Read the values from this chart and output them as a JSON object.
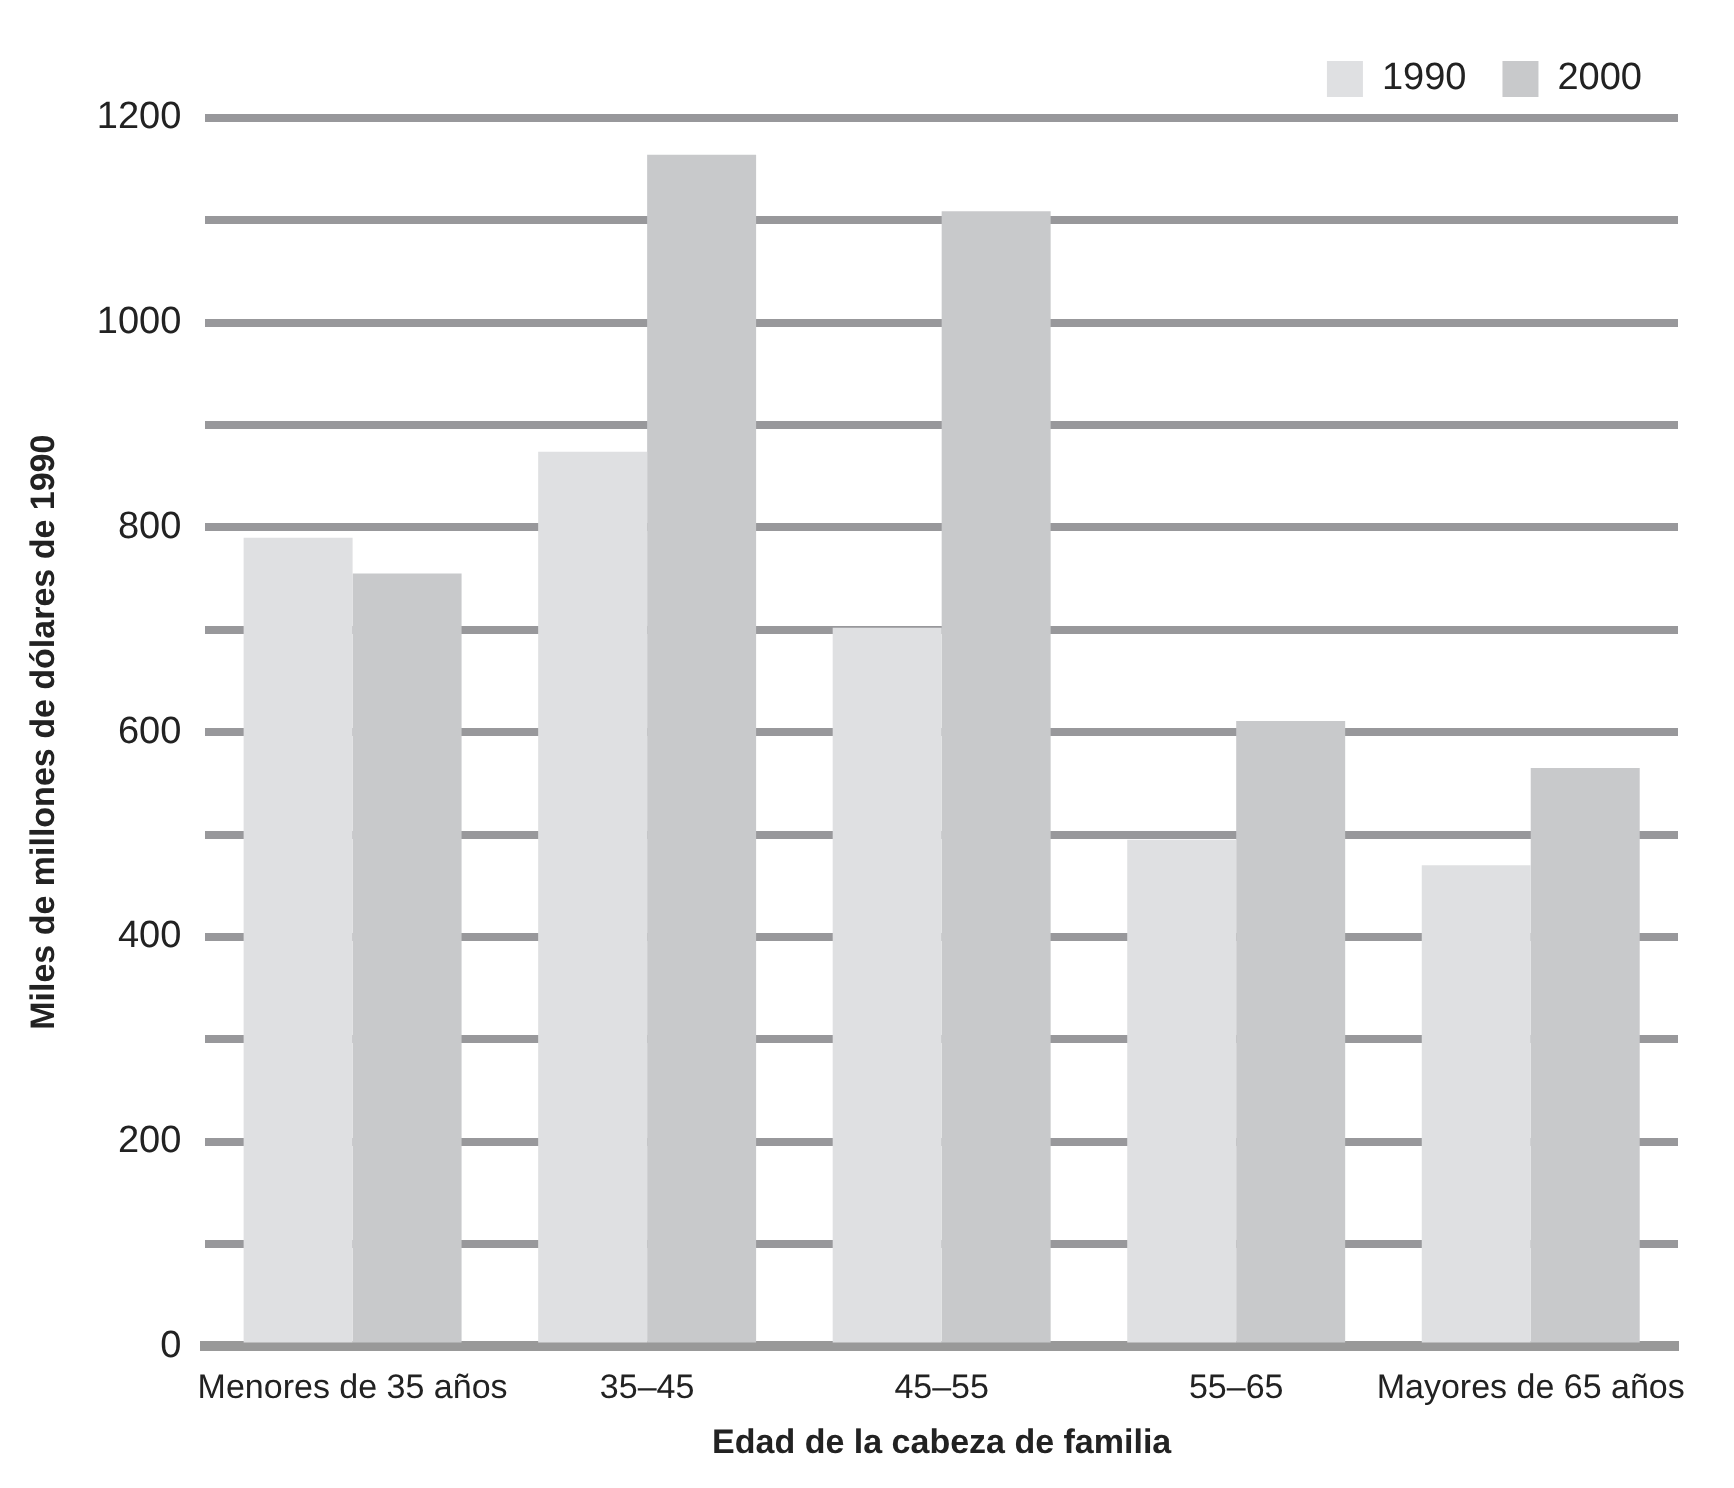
{
  "chart_data": {
    "type": "bar",
    "xlabel": "Edad de la cabeza de familia",
    "ylabel": "Miles de millones de dólares de 1990",
    "categories": [
      "Menores de 35 años",
      "35–45",
      "45–55",
      "55–65",
      "Mayores de 65 años"
    ],
    "series": [
      {
        "name": "1990",
        "color": "#dfe0e2",
        "values": [
          790,
          874,
          702,
          495,
          470
        ]
      },
      {
        "name": "2000",
        "color": "#c8c9cb",
        "values": [
          755,
          1164,
          1109,
          611,
          565
        ]
      }
    ],
    "ylim": [
      0,
      1200
    ],
    "yticks": [
      0,
      {
        "value": 100,
        "label": null
      },
      200,
      {
        "value": 300,
        "label": null
      },
      400,
      {
        "value": 500,
        "label": null
      },
      600,
      {
        "value": 700,
        "label": null
      },
      800,
      {
        "value": 900,
        "label": null
      },
      1000,
      {
        "value": 1100,
        "label": null
      },
      1200
    ],
    "grid": "y",
    "legend": "top right"
  }
}
